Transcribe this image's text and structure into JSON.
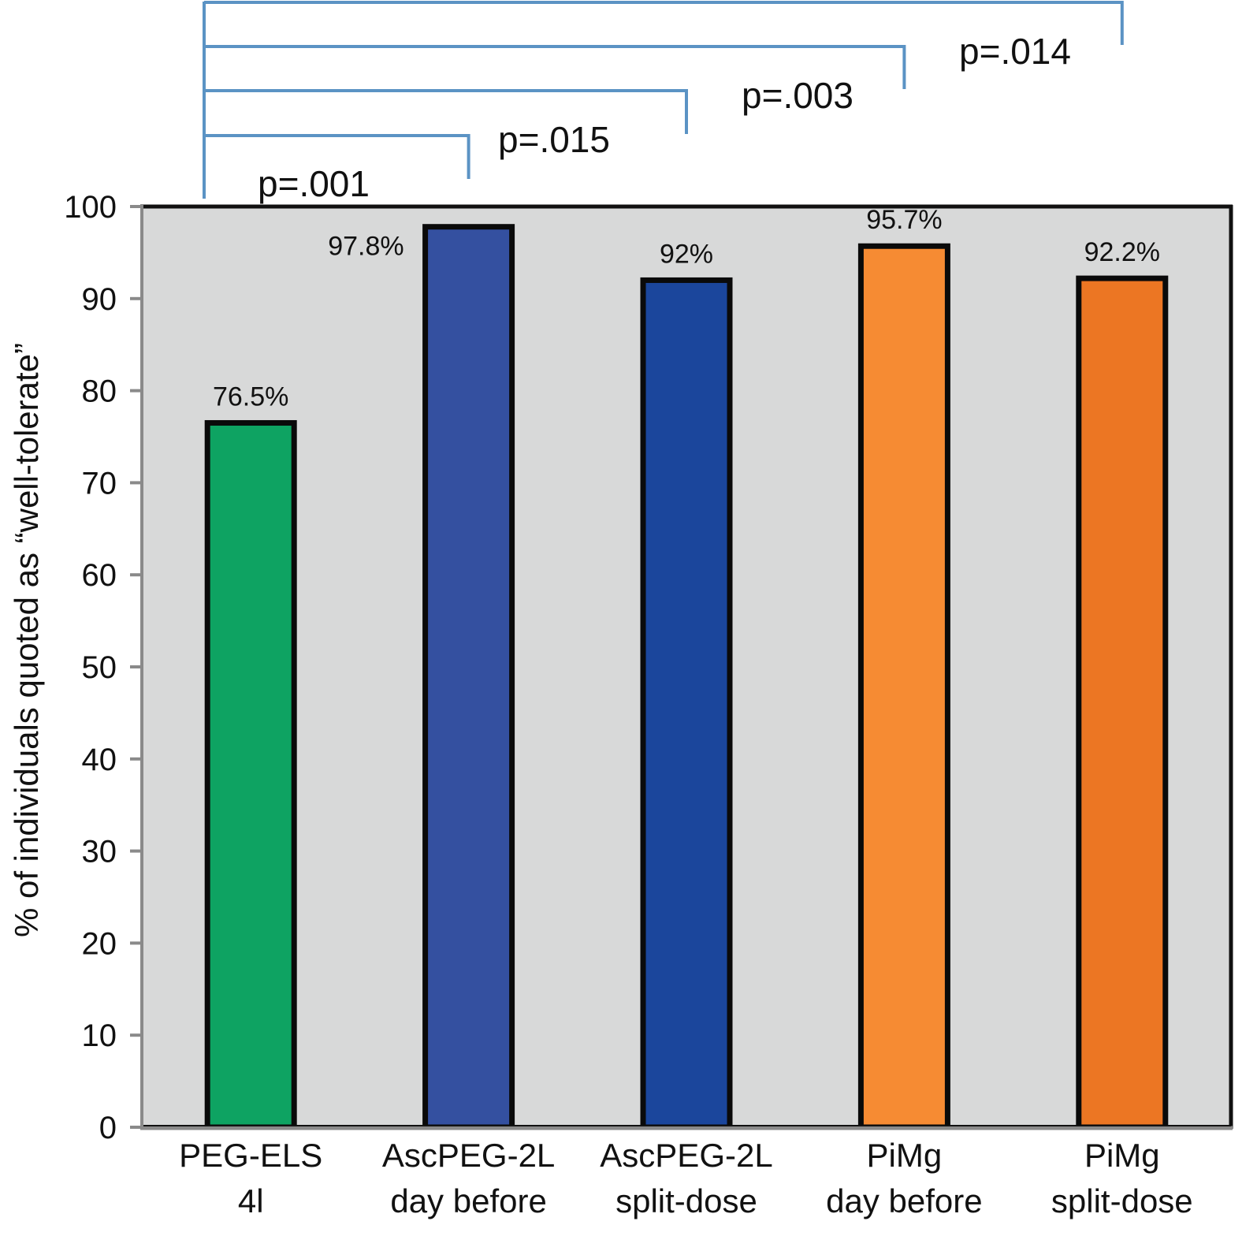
{
  "chart_data": {
    "type": "bar",
    "title": "",
    "xlabel": "",
    "ylabel": "% of individuals quoted as “well-tolerate”",
    "ylim": [
      0,
      100
    ],
    "yticks": [
      0,
      10,
      20,
      30,
      40,
      50,
      60,
      70,
      80,
      90,
      100
    ],
    "grid": false,
    "legend": "none",
    "plot_background": "#d8d9d9",
    "categories": [
      [
        "PEG-ELS",
        "4l"
      ],
      [
        "AscPEG-2L",
        "day before"
      ],
      [
        "AscPEG-2L",
        "split-dose"
      ],
      [
        "PiMg",
        "day before"
      ],
      [
        "PiMg",
        "split-dose"
      ]
    ],
    "values": [
      76.5,
      97.8,
      92,
      95.7,
      92.2
    ],
    "data_labels": [
      "76.5%",
      "97.8%",
      "92%",
      "95.7%",
      "92.2%"
    ],
    "bar_colors": [
      "#0ea362",
      "#3450a0",
      "#1b469c",
      "#f68b33",
      "#ec7623"
    ],
    "comparisons": [
      {
        "from": 0,
        "to": 1,
        "label": "p=.001"
      },
      {
        "from": 0,
        "to": 2,
        "label": "p=.015"
      },
      {
        "from": 0,
        "to": 3,
        "label": "p=.003"
      },
      {
        "from": 0,
        "to": 4,
        "label": "p=.014"
      }
    ],
    "bracket_color": "#5b93c4"
  }
}
